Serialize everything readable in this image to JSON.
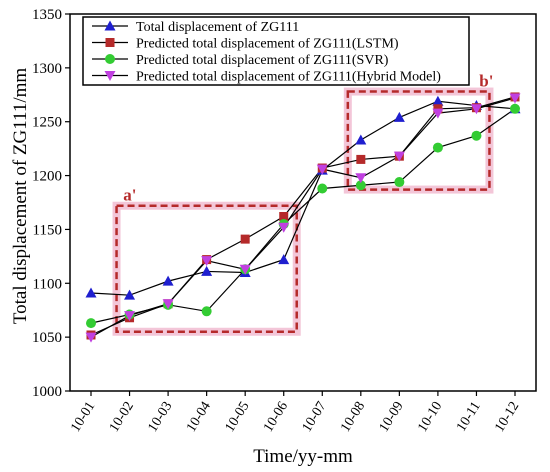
{
  "chart_data": {
    "type": "line",
    "title": "",
    "xlabel": "Time/yy-mm",
    "ylabel": "Total displacement of ZG111/mm",
    "categories": [
      "10-01",
      "10-02",
      "10-03",
      "10-04",
      "10-05",
      "10-06",
      "10-07",
      "10-08",
      "10-09",
      "10-10",
      "10-11",
      "10-12"
    ],
    "ylim": [
      1000,
      1350
    ],
    "yticks": [
      1000,
      1050,
      1100,
      1150,
      1200,
      1250,
      1300,
      1350
    ],
    "grid": false,
    "legend_position": "top-left",
    "series": [
      {
        "name": "Total displacement of ZG111",
        "color": "#1f1fcf",
        "marker": "triangle-up",
        "values": [
          1091,
          1089,
          1102,
          1111,
          1110,
          1122,
          1205,
          1233,
          1254,
          1269,
          1265,
          1262
        ]
      },
      {
        "name": "Predicted total displacement of ZG111(LSTM)",
        "color": "#b52a2a",
        "marker": "square",
        "values": [
          1052,
          1068,
          1081,
          1122,
          1141,
          1162,
          1207,
          1215,
          1218,
          1262,
          1263,
          1273
        ]
      },
      {
        "name": "Predicted total displacement of ZG111(SVR)",
        "color": "#33cc33",
        "marker": "circle",
        "values": [
          1063,
          1071,
          1080,
          1074,
          1113,
          1155,
          1188,
          1191,
          1194,
          1226,
          1237,
          1262
        ]
      },
      {
        "name": "Predicted total displacement of ZG111(Hybrid Model)",
        "color": "#c040e0",
        "marker": "triangle-down",
        "values": [
          1050,
          1070,
          1081,
          1121,
          1113,
          1152,
          1206,
          1198,
          1218,
          1258,
          1262,
          1272
        ]
      }
    ],
    "annotations": [
      {
        "label": "a'",
        "color": "#b52a2a",
        "x_range": [
          "10-02",
          "10-06"
        ],
        "y_range": [
          1055,
          1172
        ]
      },
      {
        "label": "b'",
        "color": "#b52a2a",
        "x_range": [
          "10-08",
          "10-11"
        ],
        "y_range": [
          1187,
          1278
        ]
      }
    ]
  }
}
